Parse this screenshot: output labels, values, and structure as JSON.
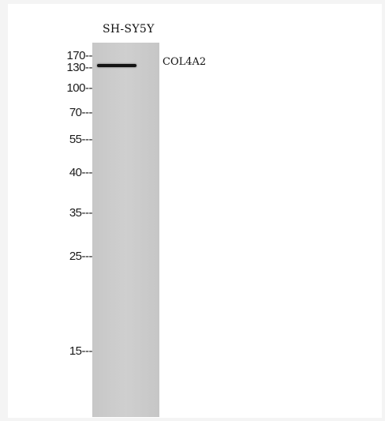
{
  "sample_label": "SH-SY5Y",
  "protein_label": "COL4A2",
  "markers": [
    {
      "id": "170",
      "label": "170--"
    },
    {
      "id": "130",
      "label": "130--"
    },
    {
      "id": "100",
      "label": "100--"
    },
    {
      "id": "70",
      "label": "70---"
    },
    {
      "id": "55",
      "label": "55---"
    },
    {
      "id": "40",
      "label": "40---"
    },
    {
      "id": "35",
      "label": "35---"
    },
    {
      "id": "25",
      "label": "25---"
    },
    {
      "id": "15",
      "label": "15---"
    }
  ],
  "colors": {
    "background": "#f4f4f4",
    "panel": "#ffffff",
    "lane": "#c9c9c9",
    "band": "#141414"
  }
}
